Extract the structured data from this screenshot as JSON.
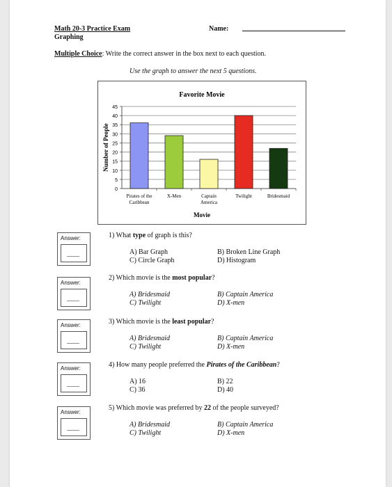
{
  "header": {
    "title": "Math 20-3 Practice Exam",
    "subtitle": "Graphing",
    "name_label": "Name:"
  },
  "instructions": {
    "section_label": "Multiple Choice",
    "text": ": Write the correct answer in the box next to each question.",
    "graph_note": "Use the graph to answer the next 5 questions."
  },
  "chart_data": {
    "type": "bar",
    "title": "Favorite Movie",
    "xlabel": "Movie",
    "ylabel": "Number of People",
    "categories": [
      "Pirates of the Caribbean",
      "X-Men",
      "Captain America",
      "Twilight",
      "Bridesmaid"
    ],
    "category_lines": [
      [
        "Pirates of the",
        "Caribbean"
      ],
      [
        "X-Men"
      ],
      [
        "Captain",
        "America"
      ],
      [
        "Twilight"
      ],
      [
        "Bridesmaid"
      ]
    ],
    "values": [
      36,
      29,
      16,
      40,
      22
    ],
    "colors": [
      "#8d95f4",
      "#9ccc3c",
      "#fbf7a4",
      "#e62b22",
      "#153a12"
    ],
    "yticks": [
      "0",
      "5",
      "10",
      "15",
      "20",
      "25",
      "30",
      "35",
      "40",
      "45"
    ],
    "ylim": [
      0,
      45
    ],
    "grid": true
  },
  "answer_label": "Answer:",
  "answer_blank": "____",
  "questions": [
    {
      "pre": "1) What ",
      "bold": "type",
      "post": " of graph is this?",
      "a": "A) Bar Graph",
      "b": "B) Broken Line Graph",
      "c": "C) Circle Graph",
      "d": "D) Histogram"
    },
    {
      "pre": "2) Which movie is the ",
      "bold": "most popular",
      "post": "?",
      "a": "A) Bridesmaid",
      "b": "B) Captain America",
      "c": "C) Twilight",
      "d": "D) X-men"
    },
    {
      "pre": "3) Which movie is the ",
      "bold": "least popular",
      "post": "?",
      "a": "A) Bridesmaid",
      "b": "B) Captain America",
      "c": "C) Twilight",
      "d": "D) X-men"
    },
    {
      "pre": "4) How many people preferred the ",
      "bold": "Pirates of the Caribbean",
      "post": "?",
      "a": "A) 16",
      "b": "B) 22",
      "c": "C) 36",
      "d": "D) 40"
    },
    {
      "pre": "5) Which movie was preferred by ",
      "bold": "22",
      "post": " of the people surveyed?",
      "a": "A) Bridesmaid",
      "b": "B) Captain America",
      "c": "C) Twilight",
      "d": "D) X-men"
    }
  ]
}
